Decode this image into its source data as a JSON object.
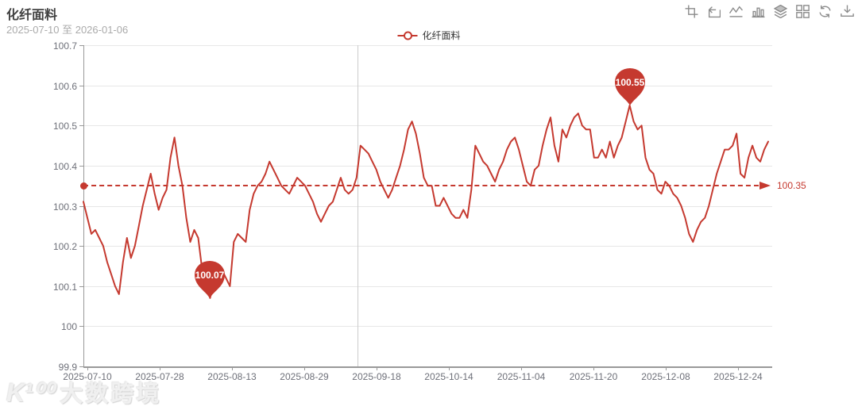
{
  "header": {
    "title": "化纤面料",
    "date_range": "2025-07-10 至 2026-01-06"
  },
  "legend": {
    "label": "化纤面料"
  },
  "toolbox": {
    "icons": [
      {
        "name": "area-zoom-icon"
      },
      {
        "name": "zoom-reset-icon"
      },
      {
        "name": "line-chart-icon"
      },
      {
        "name": "bar-chart-icon"
      },
      {
        "name": "stack-icon"
      },
      {
        "name": "tiled-icon"
      },
      {
        "name": "restore-icon"
      },
      {
        "name": "save-image-icon"
      }
    ]
  },
  "colors": {
    "accent": "#c5392f",
    "grid": "#e7e7e7",
    "axis": "#999999",
    "tick_text": "#6e7079",
    "split_line": "#cccccc"
  },
  "chart_data": {
    "type": "line",
    "title": "化纤面料",
    "grid": true,
    "legend_position": "top-center",
    "x_axis": {
      "tick_labels": [
        "2025-07-10",
        "2025-07-28",
        "2025-08-13",
        "2025-08-29",
        "2025-09-18",
        "2025-10-14",
        "2025-11-04",
        "2025-11-20",
        "2025-12-08",
        "2025-12-24"
      ]
    },
    "y_axis": {
      "min": 99.9,
      "max": 100.7,
      "tick_labels": [
        "100.7",
        "100.6",
        "100.5",
        "100.4",
        "100.3",
        "100.2",
        "100.1",
        "100",
        "99.9"
      ]
    },
    "markline": {
      "value": 100.35,
      "label": "100.35"
    },
    "markpoints": [
      {
        "type": "max",
        "value": 100.55,
        "label": "100.55"
      },
      {
        "type": "min",
        "value": 100.07,
        "label": "100.07"
      }
    ],
    "split_line_frac": 0.398,
    "series": [
      {
        "name": "化纤面料",
        "color": "#c5392f",
        "values": [
          100.31,
          100.27,
          100.23,
          100.24,
          100.22,
          100.2,
          100.16,
          100.13,
          100.1,
          100.08,
          100.16,
          100.22,
          100.17,
          100.2,
          100.25,
          100.3,
          100.34,
          100.38,
          100.33,
          100.29,
          100.32,
          100.34,
          100.42,
          100.47,
          100.4,
          100.35,
          100.27,
          100.21,
          100.24,
          100.22,
          100.14,
          100.11,
          100.07,
          100.11,
          100.13,
          100.14,
          100.12,
          100.1,
          100.21,
          100.23,
          100.22,
          100.21,
          100.29,
          100.33,
          100.35,
          100.36,
          100.38,
          100.41,
          100.39,
          100.37,
          100.35,
          100.34,
          100.33,
          100.35,
          100.37,
          100.36,
          100.35,
          100.33,
          100.31,
          100.28,
          100.26,
          100.28,
          100.3,
          100.31,
          100.34,
          100.37,
          100.34,
          100.33,
          100.34,
          100.37,
          100.45,
          100.44,
          100.43,
          100.41,
          100.39,
          100.36,
          100.34,
          100.32,
          100.34,
          100.37,
          100.4,
          100.44,
          100.49,
          100.51,
          100.48,
          100.43,
          100.37,
          100.35,
          100.35,
          100.3,
          100.3,
          100.32,
          100.3,
          100.28,
          100.27,
          100.27,
          100.29,
          100.27,
          100.34,
          100.45,
          100.43,
          100.41,
          100.4,
          100.38,
          100.36,
          100.39,
          100.41,
          100.44,
          100.46,
          100.47,
          100.44,
          100.4,
          100.36,
          100.35,
          100.39,
          100.4,
          100.45,
          100.49,
          100.52,
          100.45,
          100.41,
          100.49,
          100.47,
          100.5,
          100.52,
          100.53,
          100.5,
          100.49,
          100.49,
          100.42,
          100.42,
          100.44,
          100.42,
          100.46,
          100.42,
          100.45,
          100.47,
          100.51,
          100.55,
          100.51,
          100.49,
          100.5,
          100.42,
          100.39,
          100.38,
          100.34,
          100.33,
          100.36,
          100.35,
          100.33,
          100.32,
          100.3,
          100.27,
          100.23,
          100.21,
          100.24,
          100.26,
          100.27,
          100.3,
          100.34,
          100.38,
          100.41,
          100.44,
          100.44,
          100.45,
          100.48,
          100.38,
          100.37,
          100.42,
          100.45,
          100.42,
          100.41,
          100.44,
          100.46
        ]
      }
    ]
  },
  "watermark": {
    "logo": "K¹⁰⁰",
    "text": "大数跨境"
  }
}
